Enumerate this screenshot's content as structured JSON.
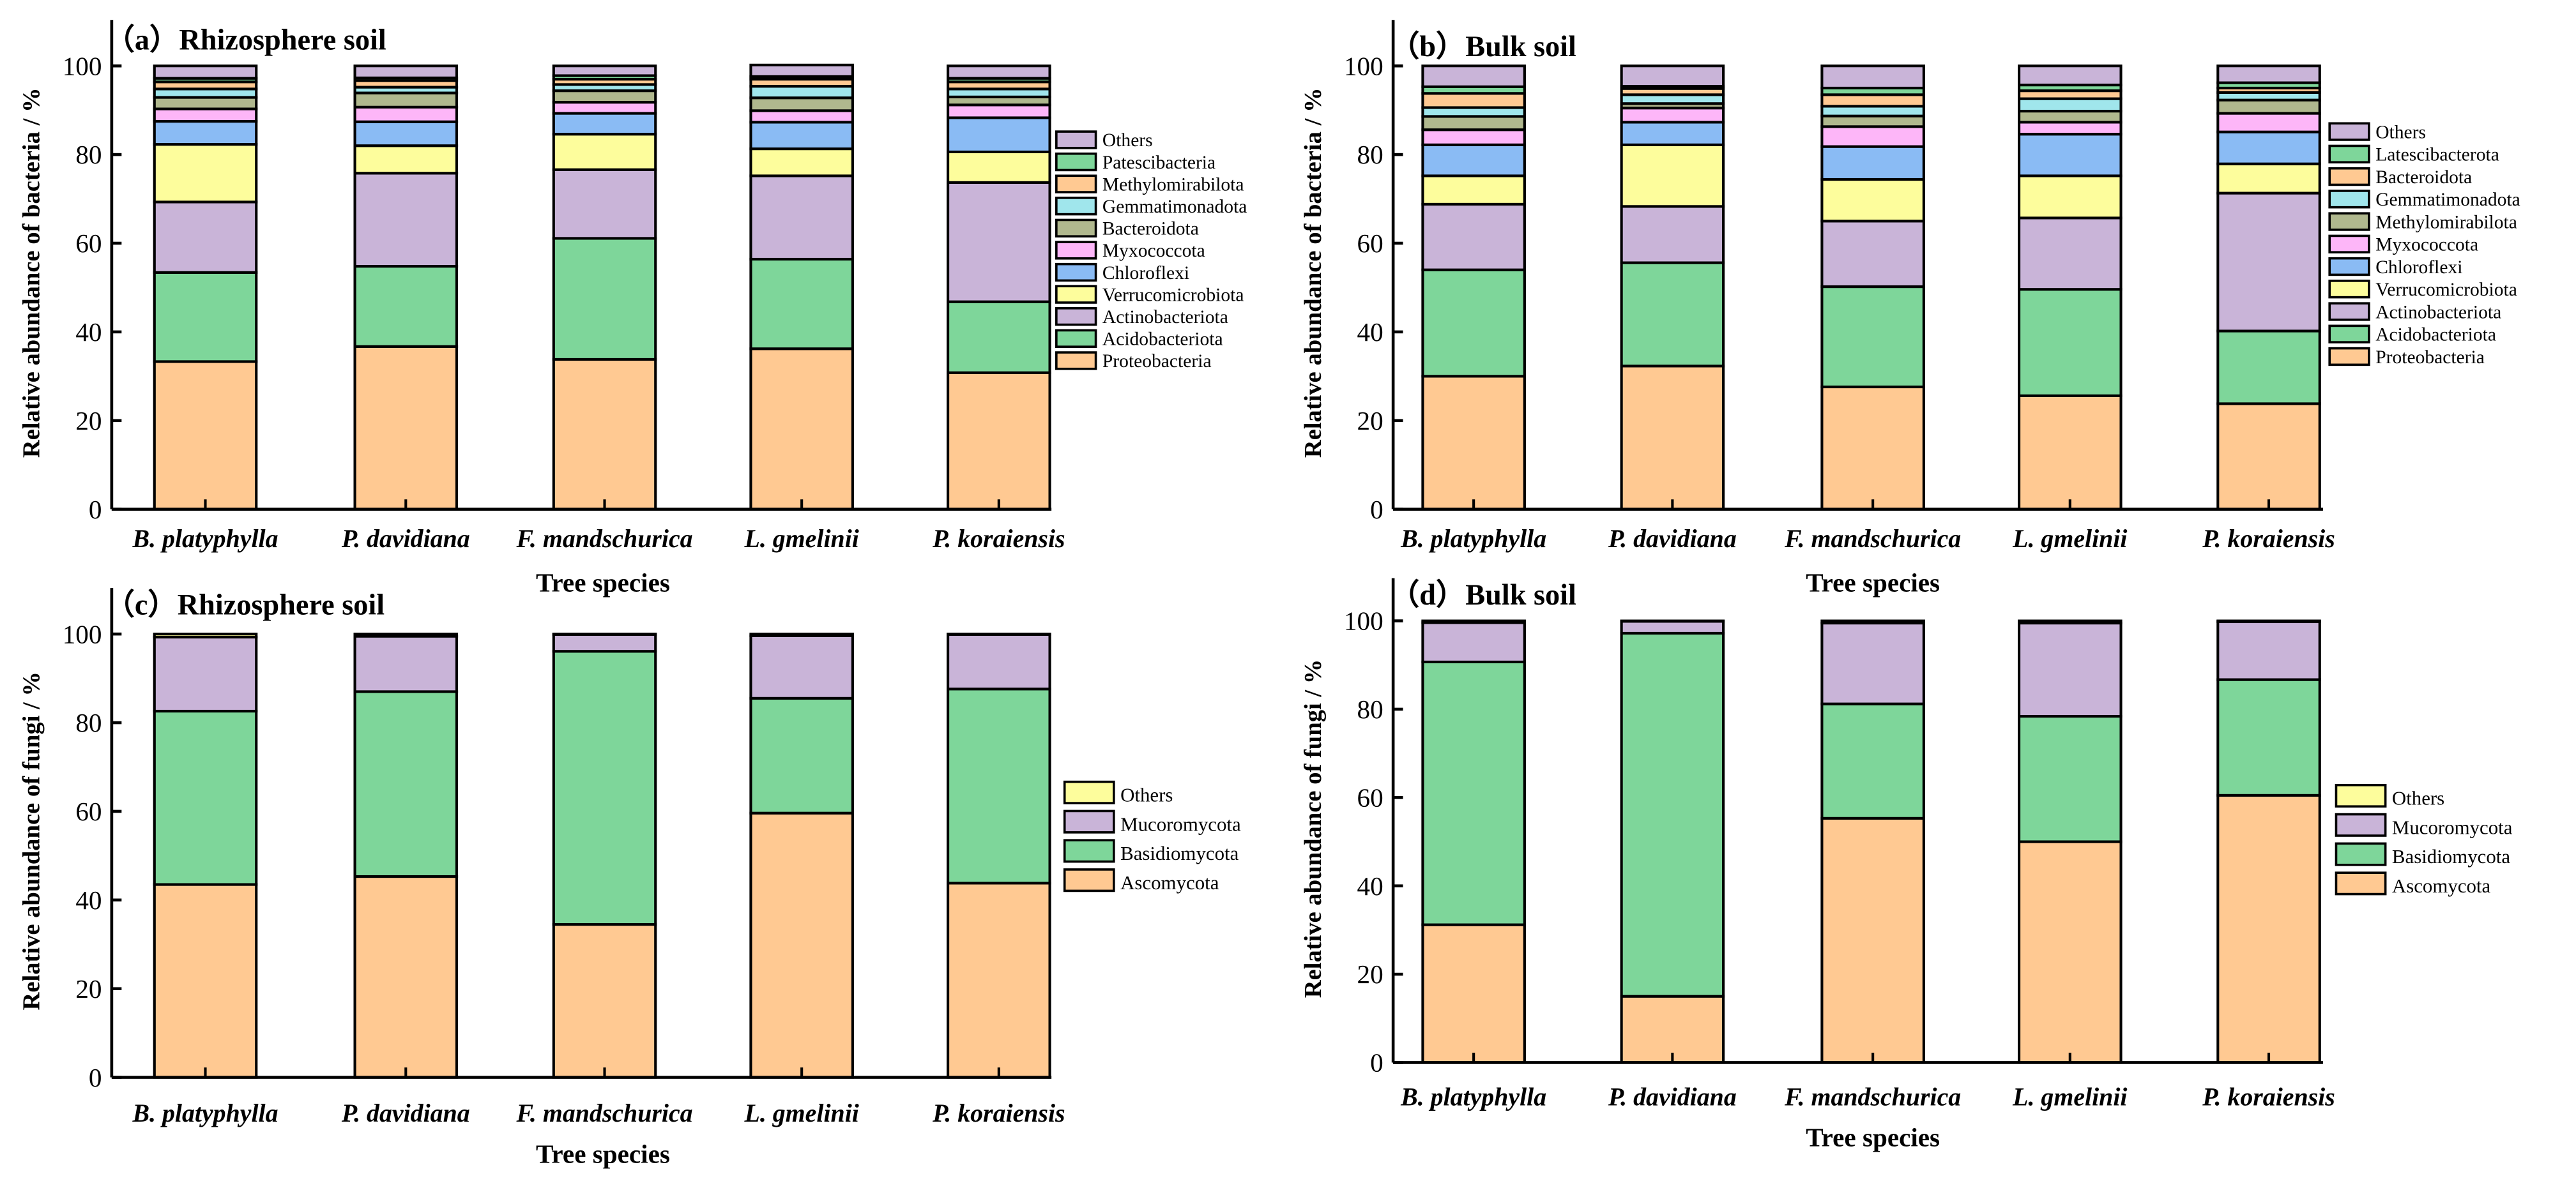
{
  "chart_data": [
    {
      "panel": "a",
      "type": "bar",
      "stacked": true,
      "title": "（a）Rhizosphere soil",
      "xlabel": "Tree species",
      "ylabel": "Relative abundance of bacteria / %",
      "ylim": [
        0,
        100
      ],
      "yticks": [
        "0",
        "20",
        "40",
        "60",
        "80",
        "100"
      ],
      "legend_placement": "right",
      "categories": [
        "B. platyphylla",
        "P. davidiana",
        "F. mandschurica",
        "L. gmelinii",
        "P. koraiensis"
      ],
      "series": [
        {
          "name": "Proteobacteria",
          "color": "#FFC992",
          "values": [
            33.3,
            36.7,
            33.8,
            36.2,
            30.8
          ]
        },
        {
          "name": "Acidobacteriota",
          "color": "#7ED69A",
          "values": [
            20.1,
            18.1,
            27.3,
            20.2,
            16.0
          ]
        },
        {
          "name": "Actinobacteriota",
          "color": "#C9B4D8",
          "values": [
            15.9,
            21.0,
            15.5,
            18.8,
            26.9
          ]
        },
        {
          "name": "Verrucomicrobiota",
          "color": "#FDFD9C",
          "values": [
            13.0,
            6.2,
            8.0,
            6.1,
            6.9
          ]
        },
        {
          "name": "Chloroflexi",
          "color": "#8ABBF4",
          "values": [
            5.2,
            5.4,
            4.7,
            6.0,
            7.7
          ]
        },
        {
          "name": "Myxococcota",
          "color": "#FDB6F8",
          "values": [
            2.8,
            3.3,
            2.5,
            2.6,
            2.9
          ]
        },
        {
          "name": "Bacteroidota",
          "color": "#B0B88E",
          "values": [
            2.6,
            3.2,
            2.6,
            2.9,
            1.8
          ]
        },
        {
          "name": "Gemmatimonadota",
          "color": "#A0E6EC",
          "values": [
            1.9,
            1.3,
            1.4,
            2.6,
            1.8
          ]
        },
        {
          "name": "Methylomirabilota",
          "color": "#FFC992",
          "values": [
            1.6,
            1.5,
            1.2,
            1.6,
            1.6
          ]
        },
        {
          "name": "Patescibacteria",
          "color": "#7ED69A",
          "values": [
            0.8,
            0.6,
            0.8,
            0.6,
            0.8
          ]
        },
        {
          "name": "Others",
          "color": "#C9B4D8",
          "values": [
            2.8,
            2.7,
            2.2,
            2.6,
            2.8
          ]
        }
      ]
    },
    {
      "panel": "b",
      "type": "bar",
      "stacked": true,
      "title": "（b）Bulk soil",
      "xlabel": "Tree species",
      "ylabel": "Relative abundance of bacteria / %",
      "ylim": [
        0,
        100
      ],
      "yticks": [
        "0",
        "20",
        "40",
        "60",
        "80",
        "100"
      ],
      "legend_placement": "right",
      "categories": [
        "B. platyphylla",
        "P. davidiana",
        "F. mandschurica",
        "L. gmelinii",
        "P. koraiensis"
      ],
      "series": [
        {
          "name": "Proteobacteria",
          "color": "#FFC992",
          "values": [
            30.0,
            32.3,
            27.6,
            25.6,
            23.8
          ]
        },
        {
          "name": "Acidobacteriota",
          "color": "#7ED69A",
          "values": [
            24.0,
            23.3,
            22.6,
            24.0,
            16.4
          ]
        },
        {
          "name": "Actinobacteriota",
          "color": "#C9B4D8",
          "values": [
            14.8,
            12.7,
            14.8,
            16.1,
            31.1
          ]
        },
        {
          "name": "Verrucomicrobiota",
          "color": "#FDFD9C",
          "values": [
            6.4,
            13.9,
            9.4,
            9.5,
            6.6
          ]
        },
        {
          "name": "Chloroflexi",
          "color": "#8ABBF4",
          "values": [
            7.0,
            5.1,
            7.4,
            9.4,
            7.2
          ]
        },
        {
          "name": "Myxococcota",
          "color": "#FDB6F8",
          "values": [
            3.4,
            3.2,
            4.5,
            2.7,
            4.2
          ]
        },
        {
          "name": "Methylomirabilota",
          "color": "#B0B88E",
          "values": [
            3.0,
            1.0,
            2.4,
            2.5,
            3.0
          ]
        },
        {
          "name": "Gemmatimonadota",
          "color": "#A0E6EC",
          "values": [
            2.0,
            2.0,
            2.2,
            2.8,
            1.7
          ]
        },
        {
          "name": "Bacteroidota",
          "color": "#FFC992",
          "values": [
            3.2,
            1.4,
            2.6,
            1.8,
            1.0
          ]
        },
        {
          "name": "Latescibacterota",
          "color": "#7ED69A",
          "values": [
            1.5,
            0.5,
            1.5,
            1.3,
            1.2
          ]
        },
        {
          "name": "Others",
          "color": "#C9B4D8",
          "values": [
            4.7,
            4.6,
            5.0,
            4.3,
            3.8
          ]
        }
      ]
    },
    {
      "panel": "c",
      "type": "bar",
      "stacked": true,
      "title": "（c）Rhizosphere soil",
      "xlabel": "Tree species",
      "ylabel": "Relative abundance of fungi / %",
      "ylim": [
        0,
        100
      ],
      "yticks": [
        "0",
        "20",
        "40",
        "60",
        "80",
        "100"
      ],
      "legend_placement": "right",
      "categories": [
        "B. platyphylla",
        "P. davidiana",
        "F. mandschurica",
        "L. gmelinii",
        "P. koraiensis"
      ],
      "series": [
        {
          "name": "Ascomycota",
          "color": "#FFC992",
          "values": [
            43.5,
            45.3,
            34.5,
            59.6,
            43.8
          ]
        },
        {
          "name": "Basidiomycota",
          "color": "#7ED69A",
          "values": [
            39.1,
            41.7,
            61.6,
            25.9,
            43.8
          ]
        },
        {
          "name": "Mucoromycota",
          "color": "#C9B4D8",
          "values": [
            16.7,
            12.5,
            3.8,
            14.1,
            12.3
          ]
        },
        {
          "name": "Others",
          "color": "#FDFD9C",
          "values": [
            0.7,
            0.5,
            0.1,
            0.4,
            0.1
          ]
        }
      ]
    },
    {
      "panel": "d",
      "type": "bar",
      "stacked": true,
      "title": "（d）Bulk soil",
      "xlabel": "Tree species",
      "ylabel": "Relative abundance of fungi / %",
      "ylim": [
        0,
        100
      ],
      "yticks": [
        "0",
        "20",
        "40",
        "60",
        "80",
        "100"
      ],
      "legend_placement": "right",
      "categories": [
        "B. platyphylla",
        "P. davidiana",
        "F. mandschurica",
        "L. gmelinii",
        "P. koraiensis"
      ],
      "series": [
        {
          "name": "Ascomycota",
          "color": "#FFC992",
          "values": [
            31.2,
            15.0,
            55.3,
            50.0,
            60.5
          ]
        },
        {
          "name": "Basidiomycota",
          "color": "#7ED69A",
          "values": [
            59.5,
            82.2,
            25.9,
            28.4,
            26.2
          ]
        },
        {
          "name": "Mucoromycota",
          "color": "#C9B4D8",
          "values": [
            8.9,
            2.7,
            18.3,
            21.1,
            13.1
          ]
        },
        {
          "name": "Others",
          "color": "#FDFD9C",
          "values": [
            0.4,
            0.1,
            0.5,
            0.5,
            0.2
          ]
        }
      ]
    }
  ]
}
